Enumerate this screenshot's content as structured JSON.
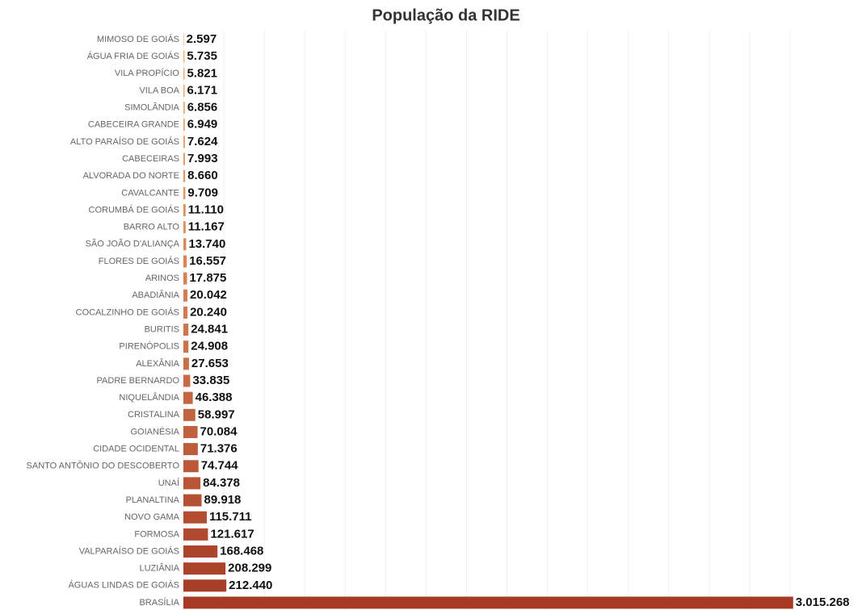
{
  "chart_data": {
    "type": "barh",
    "title": "População da RIDE",
    "categories": [
      "MIMOSO DE GOIÁS",
      "ÁGUA FRIA DE GOIÁS",
      "VILA PROPÍCIO",
      "VILA BOA",
      "SIMOLÂNDIA",
      "CABECEIRA GRANDE",
      "ALTO PARAÍSO DE GOIÁS",
      "CABECEIRAS",
      "ALVORADA DO NORTE",
      "CAVALCANTE",
      "CORUMBÁ DE GOIÁS",
      "BARRO ALTO",
      "SÃO JOÃO D'ALIANÇA",
      "FLORES DE GOIÁS",
      "ARINOS",
      "ABADIÂNIA",
      "COCALZINHO DE GOIÁS",
      "BURITIS",
      "PIRENÓPOLIS",
      "ALEXÂNIA",
      "PADRE BERNARDO",
      "NIQUELÂNDIA",
      "CRISTALINA",
      "GOIANÉSIA",
      "CIDADE OCIDENTAL",
      "SANTO ANTÔNIO DO DESCOBERTO",
      "UNAÍ",
      "PLANALTINA",
      "NOVO GAMA",
      "FORMOSA",
      "VALPARAÍSO DE GOIÁS",
      "LUZIÂNIA",
      "ÁGUAS LINDAS DE GOIÁS",
      "BRASÍLIA"
    ],
    "values": [
      2597,
      5735,
      5821,
      6171,
      6856,
      6949,
      7624,
      7993,
      8660,
      9709,
      11110,
      11167,
      13740,
      16557,
      17875,
      20042,
      20240,
      24841,
      24908,
      27653,
      33835,
      46388,
      58997,
      70084,
      71376,
      74744,
      84378,
      89918,
      115711,
      121617,
      168468,
      208299,
      212440,
      3015268
    ],
    "value_labels": [
      "2.597",
      "5.735",
      "5.821",
      "6.171",
      "6.856",
      "6.949",
      "7.624",
      "7.993",
      "8.660",
      "9.709",
      "11.110",
      "11.167",
      "13.740",
      "16.557",
      "17.875",
      "20.042",
      "20.240",
      "24.841",
      "24.908",
      "27.653",
      "33.835",
      "46.388",
      "58.997",
      "70.084",
      "71.376",
      "74.744",
      "84.378",
      "89.918",
      "115.711",
      "121.617",
      "168.468",
      "208.299",
      "212.440",
      "3.015.268"
    ],
    "color_range": [
      "#f7b777",
      "#a63a25"
    ],
    "xlim": [
      0,
      3100000
    ],
    "xticks": [
      0,
      200000,
      400000,
      600000,
      800000,
      1000000,
      1200000,
      1400000,
      1600000,
      1800000,
      2000000,
      2200000,
      2400000,
      2600000,
      2800000,
      3000000
    ],
    "grid": true
  }
}
